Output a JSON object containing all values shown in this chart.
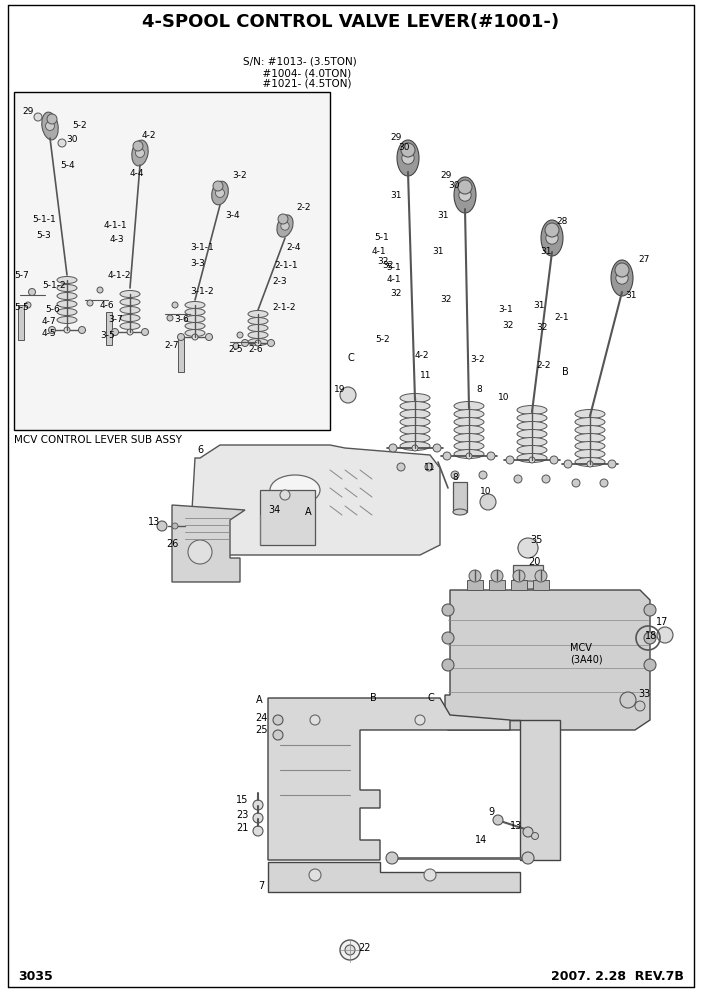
{
  "title": "4-SPOOL CONTROL VALVE LEVER(#1001-)",
  "page_number": "3035",
  "revision": "2007. 2.28  REV.7B",
  "sn_line1": "S/N: #1013- (3.5TON)",
  "sn_line2": "      #1004- (4.0TON)",
  "sn_line3": "      #1021- (4.5TON)",
  "sub_assy_label": "MCV CONTROL LEVER SUB ASSY",
  "bg_color": "#ffffff"
}
